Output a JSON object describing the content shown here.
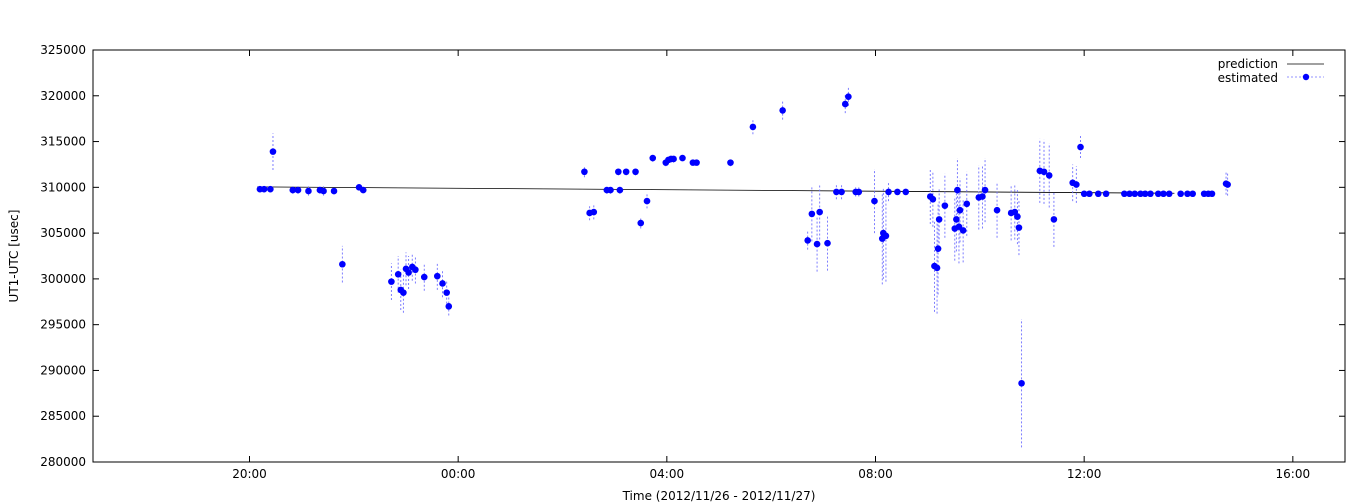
{
  "chart_data": {
    "type": "scatter",
    "title": "",
    "xlabel": "Time (2012/11/26 - 2012/11/27)",
    "ylabel": "UT1-UTC [usec]",
    "x_unit": "hours since 2012/11/26 00:00",
    "xlim": [
      17,
      41
    ],
    "ylim": [
      280000,
      325000
    ],
    "x_tick_values": [
      20,
      24,
      28,
      32,
      36,
      40
    ],
    "x_tick_labels": [
      "20:00",
      "00:00",
      "04:00",
      "08:00",
      "12:00",
      "16:00"
    ],
    "y_ticks": [
      280000,
      285000,
      290000,
      295000,
      300000,
      305000,
      310000,
      315000,
      320000,
      325000
    ],
    "grid": false,
    "legend_position": "top-right",
    "series": [
      {
        "name": "prediction",
        "style": "line",
        "color": "#000000",
        "x": [
          20.15,
          37.73
        ],
        "y": [
          310050,
          309350
        ]
      },
      {
        "name": "estimated",
        "style": "points-with-errorbars",
        "color": "#0000ff",
        "error_color": "#7070ff",
        "points": [
          [
            20.2,
            309800,
            300
          ],
          [
            20.28,
            309800,
            300
          ],
          [
            20.4,
            309800,
            300
          ],
          [
            20.45,
            313900,
            2000
          ],
          [
            20.83,
            309700,
            400
          ],
          [
            20.93,
            309700,
            400
          ],
          [
            21.13,
            309600,
            500
          ],
          [
            21.35,
            309700,
            400
          ],
          [
            21.42,
            309600,
            500
          ],
          [
            21.62,
            309600,
            400
          ],
          [
            21.78,
            301600,
            2000
          ],
          [
            22.1,
            310000,
            300
          ],
          [
            22.18,
            309700,
            300
          ],
          [
            22.72,
            299700,
            2000
          ],
          [
            22.85,
            300500,
            2000
          ],
          [
            22.9,
            298800,
            2200
          ],
          [
            22.95,
            298500,
            2200
          ],
          [
            23.0,
            301100,
            1800
          ],
          [
            23.05,
            300700,
            1800
          ],
          [
            23.12,
            301300,
            1500
          ],
          [
            23.18,
            301000,
            1500
          ],
          [
            23.35,
            300200,
            1500
          ],
          [
            23.6,
            300300,
            1500
          ],
          [
            23.7,
            299500,
            1500
          ],
          [
            23.78,
            298500,
            1200
          ],
          [
            23.82,
            297000,
            1000
          ],
          [
            26.42,
            311700,
            600
          ],
          [
            26.52,
            307200,
            800
          ],
          [
            26.6,
            307300,
            800
          ],
          [
            26.85,
            309700,
            400
          ],
          [
            26.92,
            309700,
            400
          ],
          [
            27.07,
            311700,
            400
          ],
          [
            27.1,
            309700,
            400
          ],
          [
            27.22,
            311700,
            400
          ],
          [
            27.4,
            311700,
            400
          ],
          [
            27.5,
            306100,
            600
          ],
          [
            27.62,
            308500,
            800
          ],
          [
            27.73,
            313200,
            400
          ],
          [
            27.98,
            312700,
            400
          ],
          [
            28.03,
            313000,
            400
          ],
          [
            28.08,
            313100,
            400
          ],
          [
            28.13,
            313100,
            400
          ],
          [
            28.3,
            313200,
            300
          ],
          [
            28.5,
            312700,
            300
          ],
          [
            28.57,
            312700,
            300
          ],
          [
            29.22,
            312700,
            400
          ],
          [
            29.65,
            316600,
            800
          ],
          [
            30.22,
            318400,
            1000
          ],
          [
            30.7,
            304200,
            1000
          ],
          [
            30.78,
            307100,
            3000
          ],
          [
            30.88,
            303800,
            3000
          ],
          [
            30.93,
            307300,
            3000
          ],
          [
            31.08,
            303900,
            3000
          ],
          [
            31.25,
            309500,
            800
          ],
          [
            31.35,
            309500,
            800
          ],
          [
            31.42,
            319100,
            1000
          ],
          [
            31.48,
            319900,
            1000
          ],
          [
            31.62,
            309500,
            500
          ],
          [
            31.68,
            309500,
            500
          ],
          [
            31.98,
            308500,
            3500
          ],
          [
            32.13,
            304400,
            5000
          ],
          [
            32.15,
            305000,
            5000
          ],
          [
            32.2,
            304700,
            5000
          ],
          [
            32.25,
            309500,
            1000
          ],
          [
            32.42,
            309500,
            300
          ],
          [
            32.58,
            309500,
            300
          ],
          [
            33.05,
            309000,
            3000
          ],
          [
            33.1,
            308700,
            3000
          ],
          [
            33.13,
            301400,
            5000
          ],
          [
            33.18,
            301200,
            5000
          ],
          [
            33.2,
            303300,
            5000
          ],
          [
            33.22,
            306500,
            3500
          ],
          [
            33.33,
            308000,
            3500
          ],
          [
            33.52,
            305500,
            3500
          ],
          [
            33.55,
            306500,
            3500
          ],
          [
            33.57,
            309700,
            3500
          ],
          [
            33.6,
            305700,
            4000
          ],
          [
            33.62,
            307500,
            3500
          ],
          [
            33.68,
            305300,
            3500
          ],
          [
            33.75,
            308200,
            3500
          ],
          [
            33.98,
            308900,
            3500
          ],
          [
            34.05,
            309000,
            3500
          ],
          [
            34.1,
            309700,
            3500
          ],
          [
            34.33,
            307500,
            3000
          ],
          [
            34.6,
            307200,
            3000
          ],
          [
            34.67,
            307300,
            3000
          ],
          [
            34.72,
            306800,
            3000
          ],
          [
            34.75,
            305600,
            3000
          ],
          [
            34.8,
            288600,
            7000
          ],
          [
            35.15,
            311800,
            3500
          ],
          [
            35.23,
            311700,
            3500
          ],
          [
            35.33,
            311300,
            3500
          ],
          [
            35.42,
            306500,
            3000
          ],
          [
            35.78,
            310500,
            2000
          ],
          [
            35.85,
            310300,
            2000
          ],
          [
            35.93,
            314400,
            1200
          ],
          [
            36.0,
            309300,
            300
          ],
          [
            36.1,
            309300,
            300
          ],
          [
            36.27,
            309300,
            300
          ],
          [
            36.42,
            309300,
            300
          ],
          [
            36.77,
            309300,
            300
          ],
          [
            36.87,
            309300,
            300
          ],
          [
            36.97,
            309300,
            300
          ],
          [
            37.08,
            309300,
            300
          ],
          [
            37.17,
            309300,
            300
          ],
          [
            37.27,
            309300,
            300
          ],
          [
            37.42,
            309300,
            300
          ],
          [
            37.52,
            309300,
            300
          ],
          [
            37.63,
            309300,
            300
          ],
          [
            37.85,
            309300,
            300
          ],
          [
            37.98,
            309300,
            300
          ],
          [
            38.08,
            309300,
            300
          ],
          [
            38.3,
            309300,
            300
          ],
          [
            38.38,
            309300,
            300
          ],
          [
            38.45,
            309300,
            300
          ],
          [
            38.72,
            310400,
            1200
          ],
          [
            38.75,
            310300,
            1200
          ]
        ]
      }
    ]
  }
}
